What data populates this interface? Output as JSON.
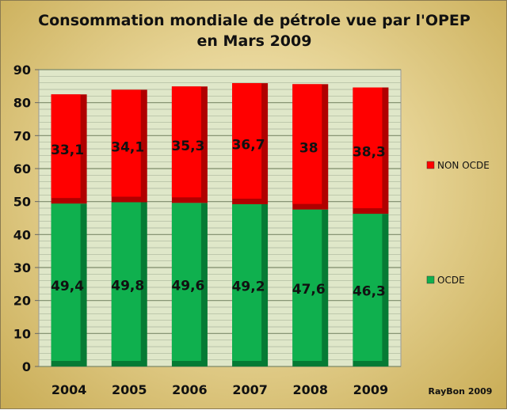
{
  "chart_data": {
    "type": "bar",
    "stacked": true,
    "title": [
      "Consommation mondiale de pétrole vue par l'OPEP",
      "en Mars 2009"
    ],
    "categories": [
      "2004",
      "2005",
      "2006",
      "2007",
      "2008",
      "2009"
    ],
    "series": [
      {
        "name": "OCDE",
        "color": "#0fb04e",
        "values": [
          49.4,
          49.8,
          49.6,
          49.2,
          47.6,
          46.3
        ],
        "labels": [
          "49,4",
          "49,8",
          "49,6",
          "49,2",
          "47,6",
          "46,3"
        ]
      },
      {
        "name": "NON OCDE",
        "color": "#ff0000",
        "values": [
          33.1,
          34.1,
          35.3,
          36.7,
          38,
          38.3
        ],
        "labels": [
          "33,1",
          "34,1",
          "35,3",
          "36,7",
          "38",
          "38,3"
        ]
      }
    ],
    "ylim": [
      0,
      90
    ],
    "yticks": [
      "0",
      "10",
      "20",
      "30",
      "40",
      "50",
      "60",
      "70",
      "80",
      "90"
    ],
    "legend": "right",
    "grid": true,
    "credit": "RayBon 2009"
  }
}
